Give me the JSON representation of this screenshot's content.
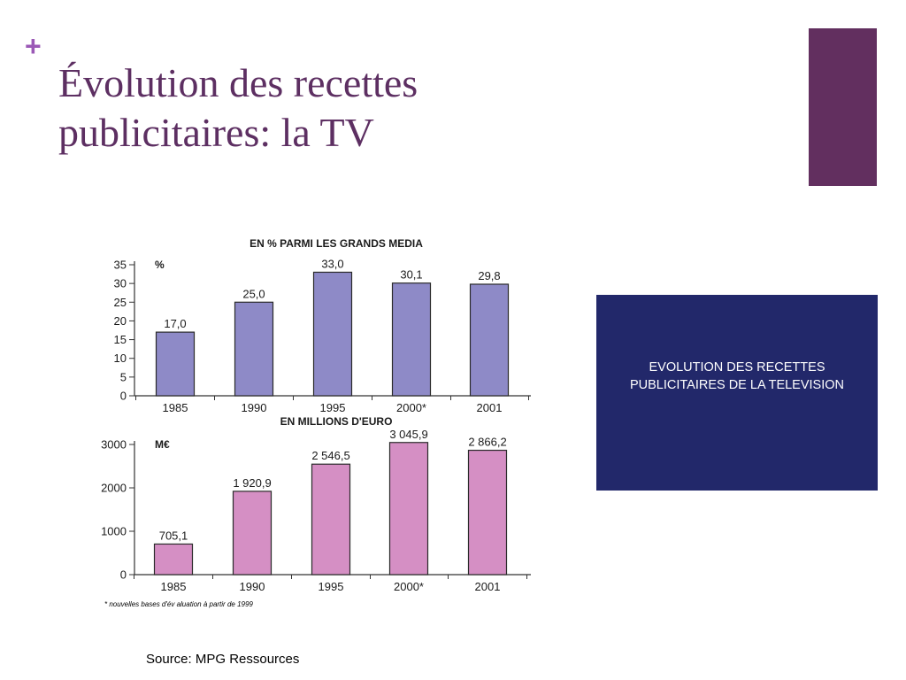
{
  "slide": {
    "plus": "+",
    "title_line1": "Évolution des recettes",
    "title_line2": "publicitaires: la TV",
    "info_line1": "EVOLUTION DES RECETTES",
    "info_line2": "PUBLICITAIRES DE LA TELEVISION",
    "footnote": "* nouvelles bases d'év      aluation à partir de 1999",
    "source": "Source: MPG Ressources"
  },
  "colors": {
    "title": "#5d2f62",
    "plus": "#9b59b6",
    "accent_bar": "#622f5f",
    "info_box": "#22286a",
    "bar_top": "#8e8ac7",
    "bar_bottom": "#d58fc4",
    "bar_stroke": "#2a2a2a"
  },
  "chart_data": [
    {
      "type": "bar",
      "title": "EN % PARMI LES GRANDS MEDIA",
      "unit": "%",
      "categories": [
        "1985",
        "1990",
        "1995",
        "2000*",
        "2001"
      ],
      "values": [
        17.0,
        25.0,
        33.0,
        30.1,
        29.8
      ],
      "value_labels": [
        "17,0",
        "25,0",
        "33,0",
        "30,1",
        "29,8"
      ],
      "yticks": [
        "0",
        "5",
        "10",
        "15",
        "20",
        "25",
        "30",
        "35"
      ],
      "ylim": [
        0,
        35
      ],
      "grid": false
    },
    {
      "type": "bar",
      "title": "EN MILLIONS D'EURO",
      "unit": "M€",
      "categories": [
        "1985",
        "1990",
        "1995",
        "2000*",
        "2001"
      ],
      "values": [
        705.1,
        1920.9,
        2546.5,
        3045.9,
        2866.2
      ],
      "value_labels": [
        "705,1",
        "1 920,9",
        "2 546,5",
        "3 045,9",
        "2 866,2"
      ],
      "yticks": [
        "0",
        "1000",
        "2000",
        "3000"
      ],
      "ylim": [
        0,
        3000
      ],
      "grid": false
    }
  ]
}
